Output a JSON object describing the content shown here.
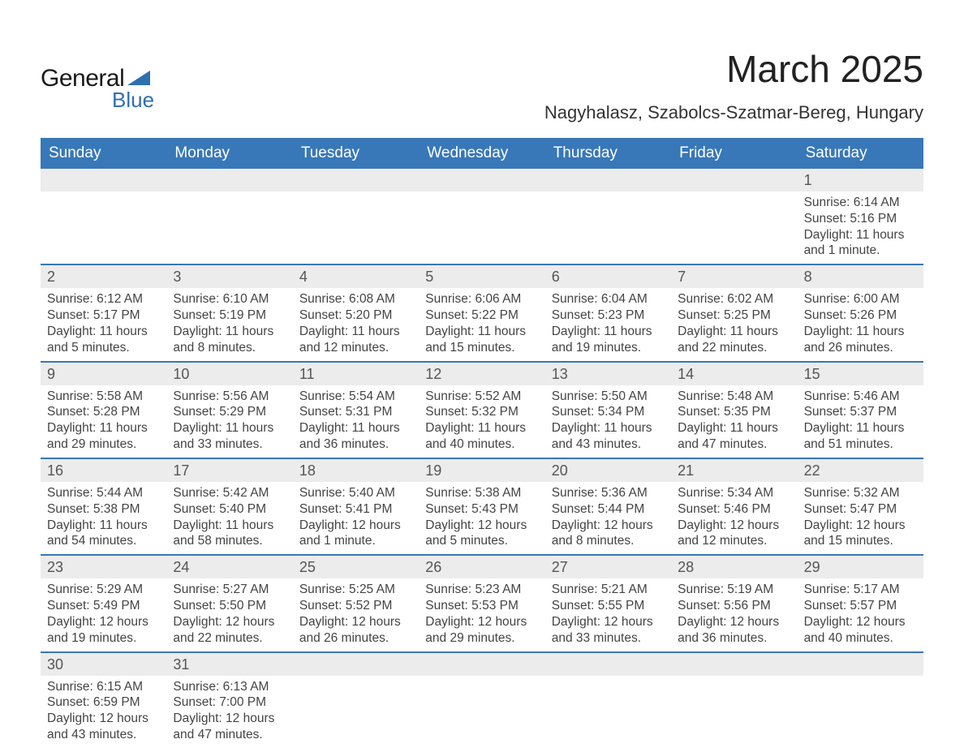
{
  "logo": {
    "top": "General",
    "bottom": "Blue"
  },
  "title": "March 2025",
  "location": "Nagyhalasz, Szabolcs-Szatmar-Bereg, Hungary",
  "colors": {
    "header_bg": "#3878b8",
    "header_text": "#ffffff",
    "daynum_bg": "#ececec",
    "text": "#444444",
    "divider": "#3878b8"
  },
  "weekdays": [
    "Sunday",
    "Monday",
    "Tuesday",
    "Wednesday",
    "Thursday",
    "Friday",
    "Saturday"
  ],
  "weeks": [
    [
      null,
      null,
      null,
      null,
      null,
      null,
      {
        "n": "1",
        "r": "Sunrise: 6:14 AM",
        "s": "Sunset: 5:16 PM",
        "d1": "Daylight: 11 hours",
        "d2": "and 1 minute."
      }
    ],
    [
      {
        "n": "2",
        "r": "Sunrise: 6:12 AM",
        "s": "Sunset: 5:17 PM",
        "d1": "Daylight: 11 hours",
        "d2": "and 5 minutes."
      },
      {
        "n": "3",
        "r": "Sunrise: 6:10 AM",
        "s": "Sunset: 5:19 PM",
        "d1": "Daylight: 11 hours",
        "d2": "and 8 minutes."
      },
      {
        "n": "4",
        "r": "Sunrise: 6:08 AM",
        "s": "Sunset: 5:20 PM",
        "d1": "Daylight: 11 hours",
        "d2": "and 12 minutes."
      },
      {
        "n": "5",
        "r": "Sunrise: 6:06 AM",
        "s": "Sunset: 5:22 PM",
        "d1": "Daylight: 11 hours",
        "d2": "and 15 minutes."
      },
      {
        "n": "6",
        "r": "Sunrise: 6:04 AM",
        "s": "Sunset: 5:23 PM",
        "d1": "Daylight: 11 hours",
        "d2": "and 19 minutes."
      },
      {
        "n": "7",
        "r": "Sunrise: 6:02 AM",
        "s": "Sunset: 5:25 PM",
        "d1": "Daylight: 11 hours",
        "d2": "and 22 minutes."
      },
      {
        "n": "8",
        "r": "Sunrise: 6:00 AM",
        "s": "Sunset: 5:26 PM",
        "d1": "Daylight: 11 hours",
        "d2": "and 26 minutes."
      }
    ],
    [
      {
        "n": "9",
        "r": "Sunrise: 5:58 AM",
        "s": "Sunset: 5:28 PM",
        "d1": "Daylight: 11 hours",
        "d2": "and 29 minutes."
      },
      {
        "n": "10",
        "r": "Sunrise: 5:56 AM",
        "s": "Sunset: 5:29 PM",
        "d1": "Daylight: 11 hours",
        "d2": "and 33 minutes."
      },
      {
        "n": "11",
        "r": "Sunrise: 5:54 AM",
        "s": "Sunset: 5:31 PM",
        "d1": "Daylight: 11 hours",
        "d2": "and 36 minutes."
      },
      {
        "n": "12",
        "r": "Sunrise: 5:52 AM",
        "s": "Sunset: 5:32 PM",
        "d1": "Daylight: 11 hours",
        "d2": "and 40 minutes."
      },
      {
        "n": "13",
        "r": "Sunrise: 5:50 AM",
        "s": "Sunset: 5:34 PM",
        "d1": "Daylight: 11 hours",
        "d2": "and 43 minutes."
      },
      {
        "n": "14",
        "r": "Sunrise: 5:48 AM",
        "s": "Sunset: 5:35 PM",
        "d1": "Daylight: 11 hours",
        "d2": "and 47 minutes."
      },
      {
        "n": "15",
        "r": "Sunrise: 5:46 AM",
        "s": "Sunset: 5:37 PM",
        "d1": "Daylight: 11 hours",
        "d2": "and 51 minutes."
      }
    ],
    [
      {
        "n": "16",
        "r": "Sunrise: 5:44 AM",
        "s": "Sunset: 5:38 PM",
        "d1": "Daylight: 11 hours",
        "d2": "and 54 minutes."
      },
      {
        "n": "17",
        "r": "Sunrise: 5:42 AM",
        "s": "Sunset: 5:40 PM",
        "d1": "Daylight: 11 hours",
        "d2": "and 58 minutes."
      },
      {
        "n": "18",
        "r": "Sunrise: 5:40 AM",
        "s": "Sunset: 5:41 PM",
        "d1": "Daylight: 12 hours",
        "d2": "and 1 minute."
      },
      {
        "n": "19",
        "r": "Sunrise: 5:38 AM",
        "s": "Sunset: 5:43 PM",
        "d1": "Daylight: 12 hours",
        "d2": "and 5 minutes."
      },
      {
        "n": "20",
        "r": "Sunrise: 5:36 AM",
        "s": "Sunset: 5:44 PM",
        "d1": "Daylight: 12 hours",
        "d2": "and 8 minutes."
      },
      {
        "n": "21",
        "r": "Sunrise: 5:34 AM",
        "s": "Sunset: 5:46 PM",
        "d1": "Daylight: 12 hours",
        "d2": "and 12 minutes."
      },
      {
        "n": "22",
        "r": "Sunrise: 5:32 AM",
        "s": "Sunset: 5:47 PM",
        "d1": "Daylight: 12 hours",
        "d2": "and 15 minutes."
      }
    ],
    [
      {
        "n": "23",
        "r": "Sunrise: 5:29 AM",
        "s": "Sunset: 5:49 PM",
        "d1": "Daylight: 12 hours",
        "d2": "and 19 minutes."
      },
      {
        "n": "24",
        "r": "Sunrise: 5:27 AM",
        "s": "Sunset: 5:50 PM",
        "d1": "Daylight: 12 hours",
        "d2": "and 22 minutes."
      },
      {
        "n": "25",
        "r": "Sunrise: 5:25 AM",
        "s": "Sunset: 5:52 PM",
        "d1": "Daylight: 12 hours",
        "d2": "and 26 minutes."
      },
      {
        "n": "26",
        "r": "Sunrise: 5:23 AM",
        "s": "Sunset: 5:53 PM",
        "d1": "Daylight: 12 hours",
        "d2": "and 29 minutes."
      },
      {
        "n": "27",
        "r": "Sunrise: 5:21 AM",
        "s": "Sunset: 5:55 PM",
        "d1": "Daylight: 12 hours",
        "d2": "and 33 minutes."
      },
      {
        "n": "28",
        "r": "Sunrise: 5:19 AM",
        "s": "Sunset: 5:56 PM",
        "d1": "Daylight: 12 hours",
        "d2": "and 36 minutes."
      },
      {
        "n": "29",
        "r": "Sunrise: 5:17 AM",
        "s": "Sunset: 5:57 PM",
        "d1": "Daylight: 12 hours",
        "d2": "and 40 minutes."
      }
    ],
    [
      {
        "n": "30",
        "r": "Sunrise: 6:15 AM",
        "s": "Sunset: 6:59 PM",
        "d1": "Daylight: 12 hours",
        "d2": "and 43 minutes."
      },
      {
        "n": "31",
        "r": "Sunrise: 6:13 AM",
        "s": "Sunset: 7:00 PM",
        "d1": "Daylight: 12 hours",
        "d2": "and 47 minutes."
      },
      null,
      null,
      null,
      null,
      null
    ]
  ]
}
